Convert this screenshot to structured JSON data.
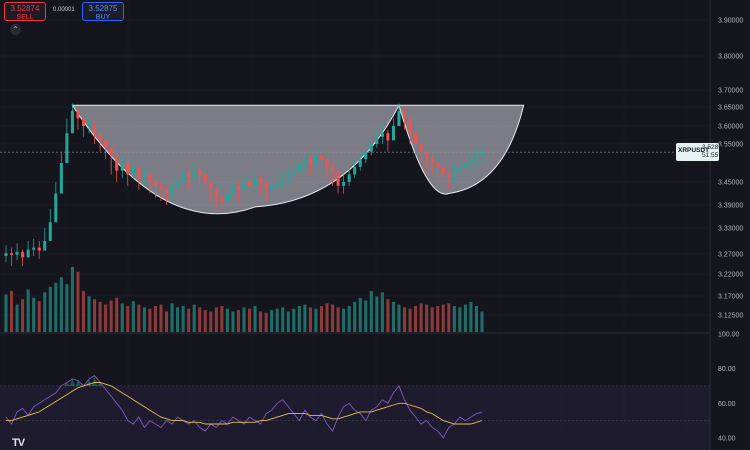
{
  "header": {
    "sell_price": "3.52874",
    "sell_label": "SELL",
    "spread": "0.00001",
    "buy_price": "3.52875",
    "buy_label": "BUY",
    "collapse_icon": "chevron-up-icon"
  },
  "price_tag": {
    "symbol": "XRPUSDT",
    "price": "3.52852",
    "countdown": "51:55"
  },
  "logo": "TV",
  "colors": {
    "up": "#26a69a",
    "down": "#ef5350",
    "rsi": "#7e57c2",
    "rsi_ma": "#e0c050"
  },
  "chart_data": [
    {
      "type": "candlestick",
      "y_axis_ticks": [
        "3.90000",
        "3.80000",
        "3.70000",
        "3.65000",
        "3.60000",
        "3.55000",
        "3.45000",
        "3.39000",
        "3.33000",
        "3.27000",
        "3.22000",
        "3.17000",
        "3.12500"
      ],
      "ylim": [
        3.1,
        3.93
      ],
      "pattern_annotation": "cup and handle",
      "close_start": 3.265,
      "high_start": 3.29,
      "low_start": 3.24,
      "closes": [
        3.272,
        3.268,
        3.275,
        3.262,
        3.28,
        3.285,
        3.278,
        3.3,
        3.345,
        3.42,
        3.5,
        3.58,
        3.64,
        3.62,
        3.6,
        3.61,
        3.58,
        3.56,
        3.54,
        3.52,
        3.48,
        3.5,
        3.47,
        3.49,
        3.46,
        3.47,
        3.45,
        3.44,
        3.43,
        3.42,
        3.44,
        3.45,
        3.47,
        3.46,
        3.48,
        3.47,
        3.45,
        3.43,
        3.41,
        3.4,
        3.42,
        3.44,
        3.43,
        3.45,
        3.44,
        3.46,
        3.45,
        3.43,
        3.44,
        3.45,
        3.46,
        3.47,
        3.48,
        3.5,
        3.51,
        3.5,
        3.52,
        3.51,
        3.49,
        3.48,
        3.44,
        3.45,
        3.47,
        3.49,
        3.51,
        3.53,
        3.55,
        3.57,
        3.58,
        3.56,
        3.6,
        3.64,
        3.62,
        3.58,
        3.55,
        3.53,
        3.51,
        3.5,
        3.49,
        3.47,
        3.46,
        3.48,
        3.49,
        3.5,
        3.51,
        3.52,
        3.529
      ],
      "highs": [
        3.29,
        3.285,
        3.295,
        3.28,
        3.3,
        3.305,
        3.3,
        3.33,
        3.38,
        3.45,
        3.53,
        3.62,
        3.66,
        3.65,
        3.63,
        3.625,
        3.61,
        3.58,
        3.56,
        3.54,
        3.51,
        3.52,
        3.5,
        3.51,
        3.49,
        3.49,
        3.47,
        3.46,
        3.45,
        3.44,
        3.46,
        3.47,
        3.49,
        3.48,
        3.5,
        3.49,
        3.47,
        3.45,
        3.43,
        3.42,
        3.44,
        3.46,
        3.45,
        3.47,
        3.46,
        3.48,
        3.47,
        3.45,
        3.46,
        3.47,
        3.48,
        3.49,
        3.5,
        3.52,
        3.53,
        3.52,
        3.54,
        3.53,
        3.51,
        3.5,
        3.47,
        3.47,
        3.49,
        3.51,
        3.53,
        3.55,
        3.57,
        3.59,
        3.6,
        3.59,
        3.62,
        3.66,
        3.65,
        3.61,
        3.57,
        3.55,
        3.53,
        3.52,
        3.51,
        3.49,
        3.48,
        3.5,
        3.51,
        3.52,
        3.53,
        3.54,
        3.545
      ],
      "lows": [
        3.25,
        3.24,
        3.255,
        3.24,
        3.26,
        3.265,
        3.258,
        3.28,
        3.31,
        3.38,
        3.46,
        3.52,
        3.59,
        3.59,
        3.57,
        3.58,
        3.55,
        3.53,
        3.51,
        3.47,
        3.45,
        3.46,
        3.44,
        3.46,
        3.43,
        3.44,
        3.42,
        3.41,
        3.4,
        3.39,
        3.4,
        3.42,
        3.44,
        3.43,
        3.45,
        3.44,
        3.42,
        3.4,
        3.38,
        3.38,
        3.39,
        3.41,
        3.4,
        3.42,
        3.41,
        3.43,
        3.42,
        3.4,
        3.41,
        3.42,
        3.43,
        3.44,
        3.45,
        3.47,
        3.48,
        3.47,
        3.49,
        3.48,
        3.46,
        3.44,
        3.42,
        3.42,
        3.44,
        3.46,
        3.48,
        3.5,
        3.52,
        3.54,
        3.55,
        3.53,
        3.57,
        3.61,
        3.59,
        3.55,
        3.52,
        3.5,
        3.48,
        3.47,
        3.45,
        3.43,
        3.43,
        3.45,
        3.46,
        3.47,
        3.48,
        3.49,
        3.5
      ],
      "volume": [
        55,
        60,
        40,
        48,
        62,
        50,
        45,
        58,
        66,
        72,
        80,
        70,
        95,
        88,
        60,
        52,
        48,
        44,
        40,
        46,
        50,
        42,
        38,
        45,
        40,
        36,
        34,
        38,
        40,
        30,
        42,
        36,
        38,
        34,
        40,
        36,
        32,
        30,
        36,
        38,
        34,
        30,
        32,
        36,
        34,
        38,
        30,
        28,
        32,
        34,
        36,
        30,
        34,
        38,
        40,
        36,
        34,
        38,
        42,
        40,
        36,
        34,
        38,
        44,
        50,
        46,
        60,
        52,
        58,
        48,
        44,
        40,
        36,
        34,
        38,
        42,
        40,
        36,
        38,
        40,
        42,
        38,
        36,
        40,
        44,
        38,
        30
      ]
    },
    {
      "type": "line",
      "indicator": "RSI",
      "y_axis_ticks": [
        "100.00",
        "80.00",
        "60.00",
        "40.00"
      ],
      "ylim": [
        33,
        100
      ],
      "bands": [
        70,
        30
      ],
      "rsi": [
        52,
        48,
        55,
        57,
        53,
        58,
        60,
        62,
        64,
        66,
        70,
        72,
        74,
        73,
        70,
        74,
        76,
        72,
        68,
        64,
        60,
        56,
        50,
        48,
        52,
        46,
        50,
        48,
        46,
        50,
        48,
        52,
        50,
        48,
        50,
        46,
        44,
        48,
        46,
        50,
        48,
        52,
        50,
        48,
        52,
        50,
        48,
        54,
        56,
        60,
        62,
        58,
        54,
        50,
        56,
        52,
        50,
        54,
        48,
        44,
        52,
        58,
        60,
        56,
        54,
        50,
        56,
        58,
        62,
        60,
        66,
        70,
        62,
        56,
        52,
        48,
        50,
        46,
        44,
        40,
        46,
        48,
        52,
        50,
        52,
        54,
        55
      ],
      "rsi_ma": [
        50,
        50,
        51,
        52,
        53,
        54,
        55,
        57,
        59,
        61,
        63,
        65,
        67,
        69,
        70,
        71,
        72,
        72,
        71,
        70,
        68,
        66,
        64,
        62,
        60,
        58,
        56,
        54,
        52,
        51,
        50,
        50,
        50,
        49,
        49,
        49,
        48,
        48,
        48,
        48,
        48,
        49,
        49,
        49,
        49,
        49,
        50,
        50,
        51,
        52,
        53,
        54,
        54,
        54,
        54,
        53,
        53,
        53,
        52,
        51,
        51,
        52,
        53,
        54,
        55,
        55,
        55,
        56,
        57,
        58,
        59,
        60,
        60,
        59,
        58,
        57,
        55,
        54,
        52,
        50,
        49,
        48,
        48,
        48,
        48,
        49,
        50
      ]
    }
  ]
}
